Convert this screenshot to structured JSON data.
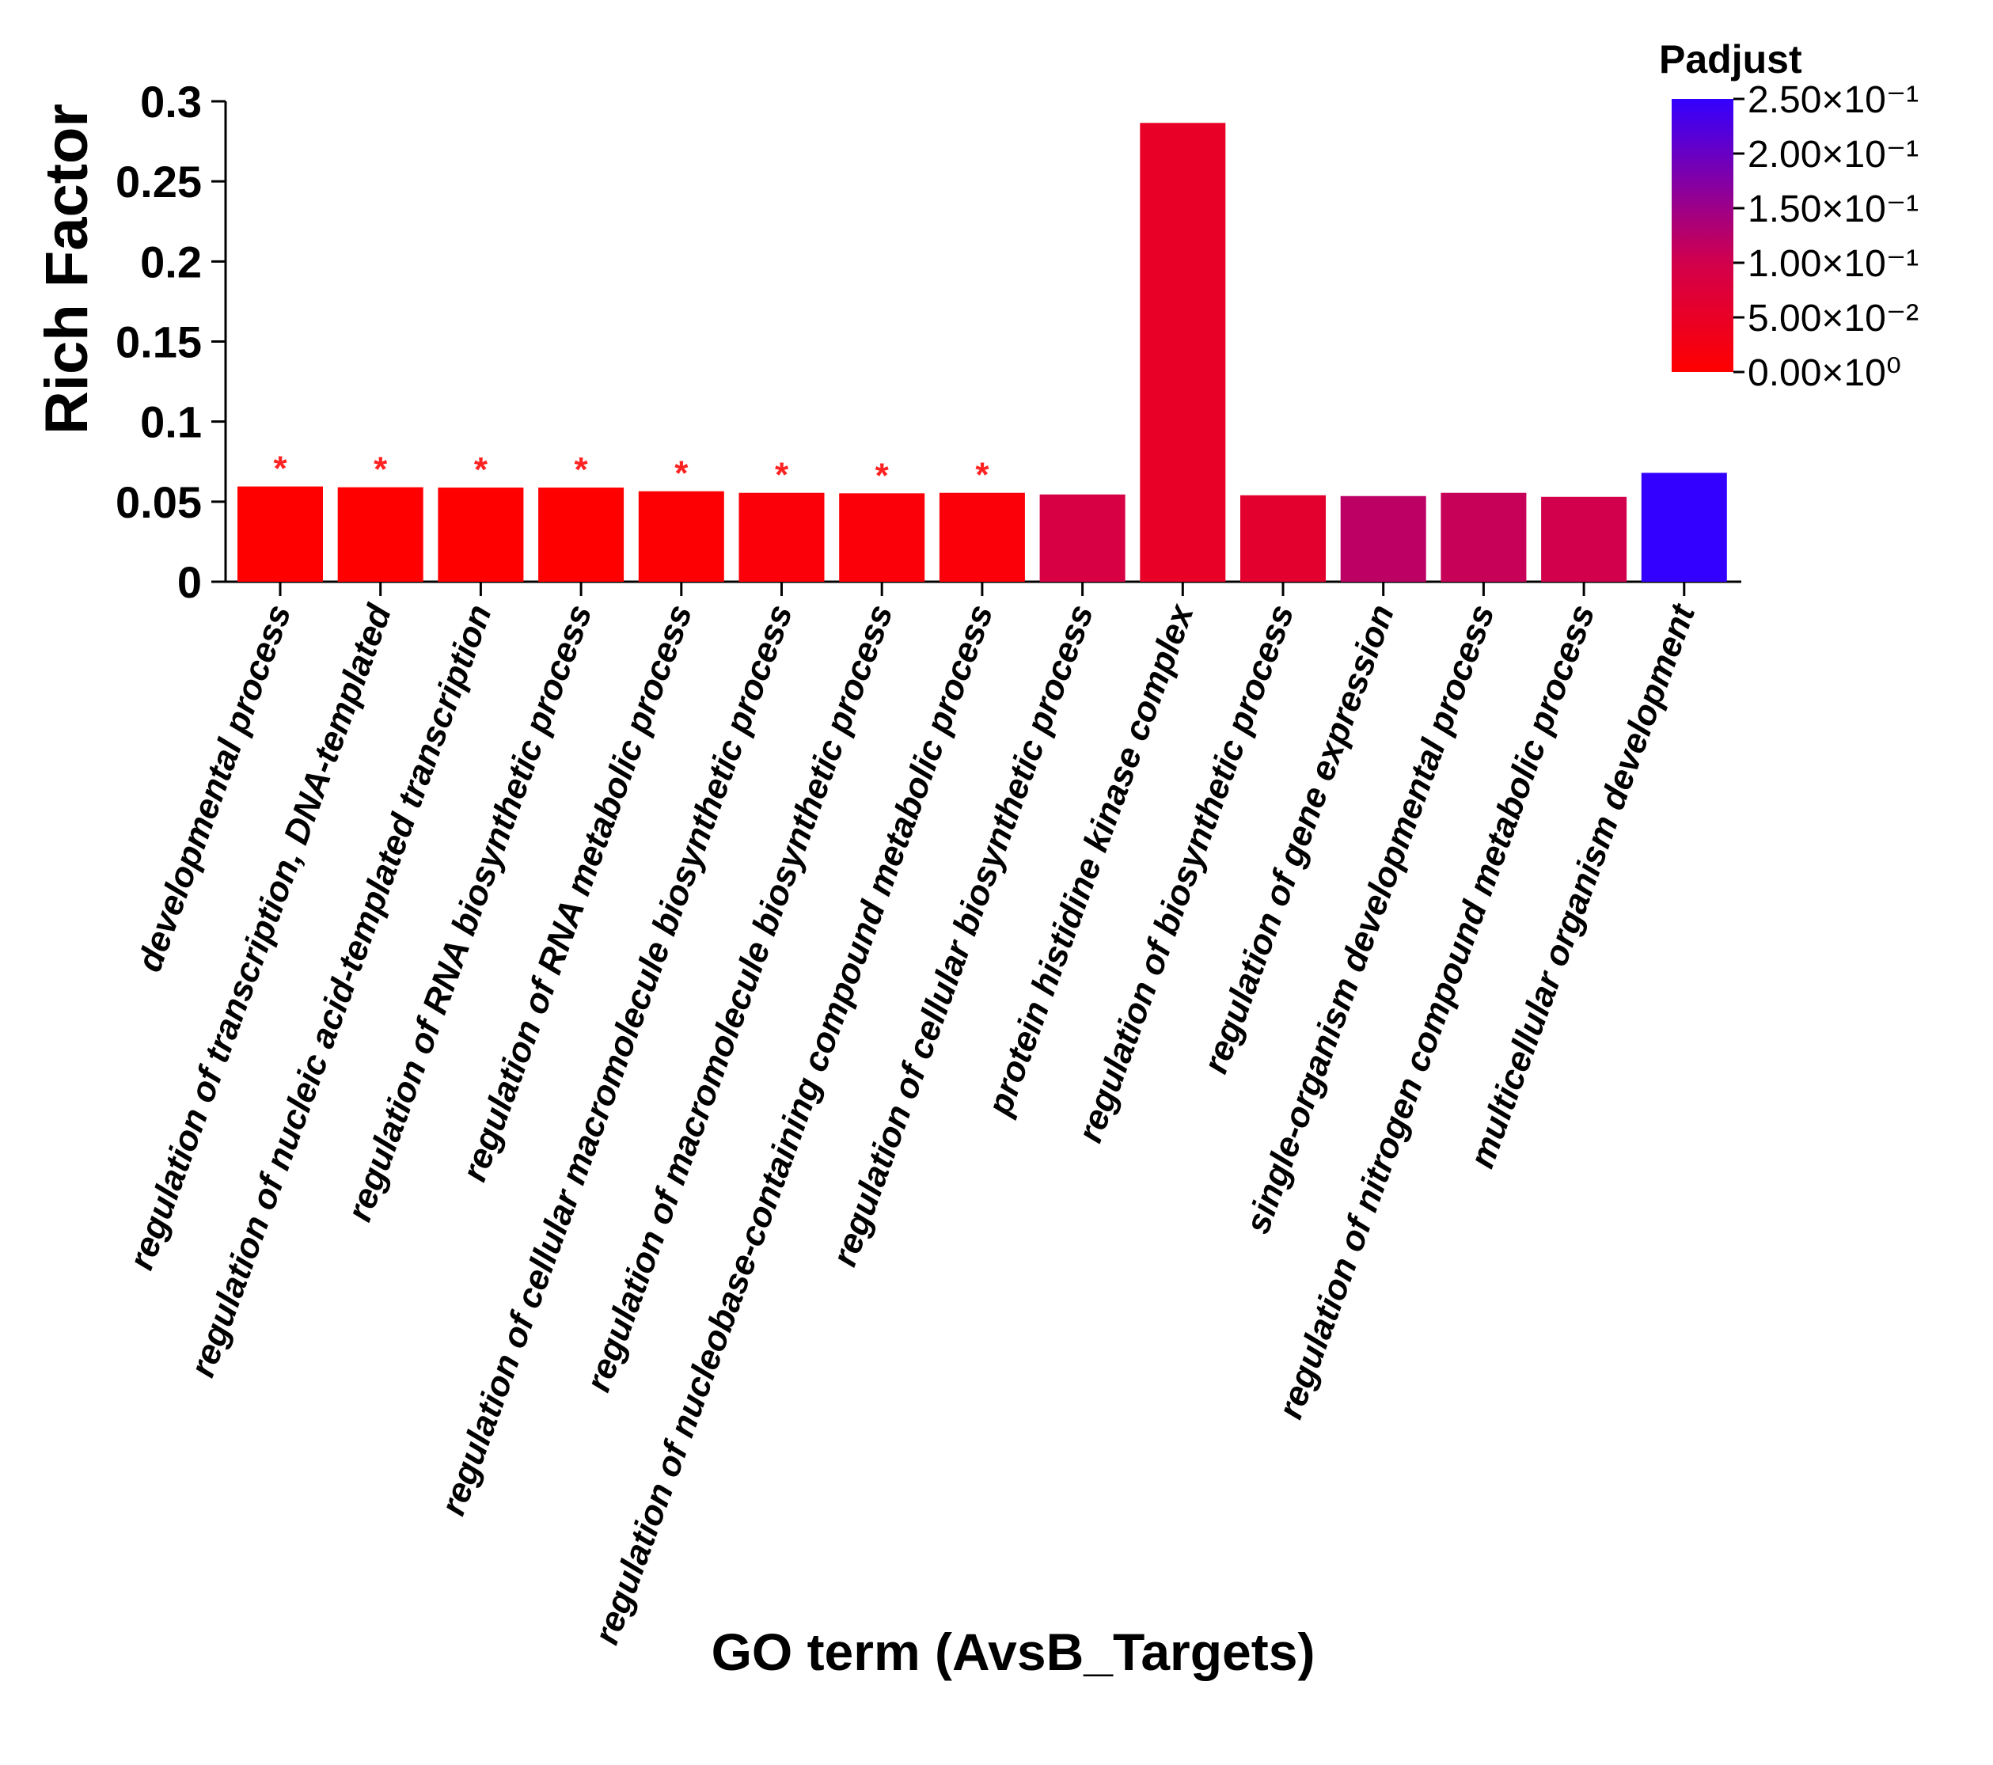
{
  "chart_data": {
    "type": "bar",
    "xlabel": "GO term (AvsB_Targets)",
    "ylabel": "Rich Factor",
    "ylim": [
      0,
      0.3
    ],
    "yticks": [
      0,
      0.05,
      0.1,
      0.15,
      0.2,
      0.25,
      0.3
    ],
    "ytick_labels": [
      "0",
      "0.05",
      "0.1",
      "0.15",
      "0.2",
      "0.25",
      "0.3"
    ],
    "grid": false,
    "categories": [
      "developmental process",
      "regulation of transcription, DNA-templated",
      "regulation of nucleic acid-templated transcription",
      "regulation of RNA biosynthetic process",
      "regulation of RNA metabolic process",
      "regulation of cellular macromolecule biosynthetic process",
      "regulation of macromolecule biosynthetic process",
      "regulation of nucleobase-containing compound metabolic process",
      "regulation of cellular biosynthetic process",
      "protein histidine kinase complex",
      "regulation of biosynthetic process",
      "regulation of gene expression",
      "single-organism developmental process",
      "regulation of nitrogen compound metabolic process",
      "multicellular organism development"
    ],
    "values": [
      0.0595,
      0.059,
      0.0588,
      0.0588,
      0.0565,
      0.0555,
      0.0552,
      0.0555,
      0.0545,
      0.2865,
      0.054,
      0.0535,
      0.0555,
      0.053,
      0.068
    ],
    "padjust": [
      0.0,
      0.0,
      0.0,
      0.0,
      0.005,
      0.01,
      0.01,
      0.01,
      0.09,
      0.05,
      0.06,
      0.12,
      0.11,
      0.1,
      0.25
    ],
    "significant": [
      true,
      true,
      true,
      true,
      true,
      true,
      true,
      true,
      false,
      false,
      false,
      false,
      false,
      false,
      false
    ],
    "significance_marker": "*",
    "legend": {
      "title": "Padjust",
      "placement": "top-right",
      "range": [
        0,
        0.25
      ],
      "ticks": [
        0.25,
        0.2,
        0.15,
        0.1,
        0.05,
        0
      ],
      "tick_labels": [
        "2.50×10⁻¹",
        "2.00×10⁻¹",
        "1.50×10⁻¹",
        "1.00×10⁻¹",
        "5.00×10⁻²",
        "0.00×10⁰"
      ],
      "colors": {
        "low": "#ff0000",
        "high": "#3300ff"
      }
    }
  }
}
